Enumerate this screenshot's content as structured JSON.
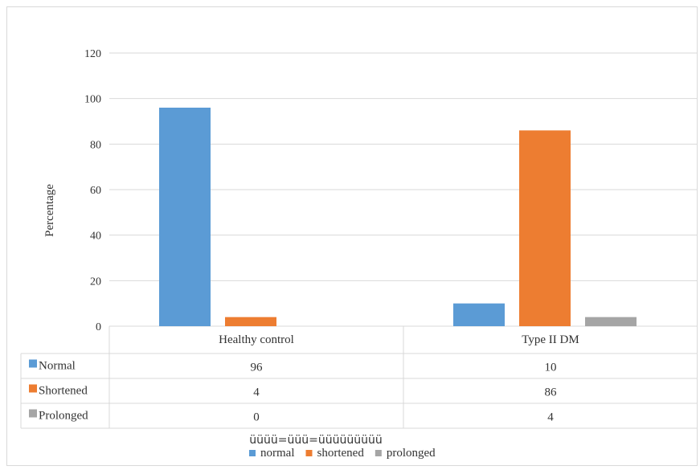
{
  "chart_data": {
    "type": "bar",
    "categories": [
      "Healthy control",
      "Type II DM"
    ],
    "series": [
      {
        "name": "Normal",
        "legend": "normal",
        "color": "#5b9bd5",
        "values": [
          96,
          10
        ]
      },
      {
        "name": "Shortened",
        "legend": "shortened",
        "color": "#ed7d31",
        "values": [
          4,
          86
        ]
      },
      {
        "name": "Prolonged",
        "legend": "prolonged",
        "color": "#a5a5a5",
        "values": [
          0,
          4
        ]
      }
    ],
    "table_values": [
      [
        "96",
        "10"
      ],
      [
        "4",
        "86"
      ],
      [
        "0",
        "4"
      ]
    ],
    "ylabel": "Percentage",
    "yticks": [
      0,
      20,
      40,
      60,
      80,
      100,
      120
    ],
    "ylim": [
      0,
      120
    ],
    "grid": true,
    "legend_position": "bottom",
    "data_table": true,
    "footnote": "üüüü=üüü=üüüüüüüüü"
  }
}
